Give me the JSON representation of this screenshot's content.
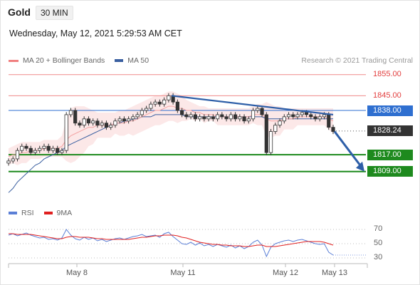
{
  "header": {
    "symbol": "Gold",
    "timeframe": "30 MIN",
    "datetime": "Wednesday, May 12, 2021 5:29:53 AM CET"
  },
  "legend": {
    "bb_label": "MA 20 + Bollinger Bands",
    "ma50_label": "MA 50",
    "credit": "Research © 2021 Trading Central"
  },
  "rsi_legend": {
    "rsi_label": "RSI",
    "ma9_label": "9MA"
  },
  "colors": {
    "bb": "#f08080",
    "ma50": "#3a5fa0",
    "rsi": "#5b7fd6",
    "ma9": "#e02020",
    "resistance": "#f08a8a",
    "support": "#1e8a1e",
    "pivot": "#2f6fd0",
    "arrow": "#2e5fa8"
  },
  "chart_data": [
    {
      "type": "line",
      "title": "Gold",
      "x_ticks": [
        "May 8",
        "May 11",
        "May 12",
        "May 13"
      ],
      "ylim": [
        1793,
        1860
      ],
      "levels": [
        {
          "label": "1855.00",
          "value": 1855.0,
          "kind": "resistance"
        },
        {
          "label": "1845.00",
          "value": 1845.0,
          "kind": "resistance"
        },
        {
          "label": "1838.00",
          "value": 1838.0,
          "kind": "pivot"
        },
        {
          "label": "1828.24",
          "value": 1828.24,
          "kind": "last"
        },
        {
          "label": "1817.00",
          "value": 1817.0,
          "kind": "support"
        },
        {
          "label": "1809.00",
          "value": 1809.0,
          "kind": "support"
        }
      ],
      "series": [
        {
          "name": "Gold",
          "values": [
            1814,
            1815,
            1819,
            1821,
            1820,
            1818,
            1819,
            1820,
            1821,
            1819,
            1820,
            1818,
            1819,
            1836,
            1838,
            1832,
            1831,
            1834,
            1832,
            1833,
            1831,
            1832,
            1830,
            1831,
            1833,
            1834,
            1833,
            1834,
            1835,
            1836,
            1838,
            1839,
            1841,
            1842,
            1841,
            1843,
            1845,
            1842,
            1838,
            1836,
            1835,
            1836,
            1834,
            1835,
            1834,
            1835,
            1834,
            1836,
            1835,
            1834,
            1836,
            1834,
            1835,
            1833,
            1834,
            1838,
            1839,
            1836,
            1818,
            1828,
            1831,
            1833,
            1835,
            1836,
            1835,
            1836,
            1837,
            1836,
            1835,
            1834,
            1835,
            1836,
            1830,
            1828
          ]
        },
        {
          "name": "MA 50",
          "values": [
            1799,
            1801,
            1804,
            1806,
            1808,
            1810,
            1812,
            1813,
            1815,
            1816,
            1817,
            1818,
            1819,
            1821,
            1822,
            1823,
            1824,
            1825,
            1826,
            1827,
            1828,
            1829,
            1830,
            1831,
            1832,
            1832,
            1833,
            1833,
            1834,
            1834,
            1835,
            1835,
            1835,
            1836,
            1836,
            1836,
            1836,
            1836,
            1836,
            1836,
            1835,
            1835,
            1835,
            1835,
            1835,
            1835,
            1835,
            1835,
            1835,
            1835,
            1835,
            1835,
            1835,
            1835,
            1835,
            1835,
            1835,
            1835,
            1834,
            1834,
            1834,
            1834,
            1834,
            1834,
            1834,
            1834,
            1834,
            1834,
            1834,
            1834,
            1834,
            1834,
            1834,
            1834
          ]
        },
        {
          "name": "MA 20",
          "values": [
            1816,
            1817,
            1817,
            1818,
            1818,
            1819,
            1819,
            1819,
            1820,
            1820,
            1820,
            1820,
            1821,
            1824,
            1826,
            1827,
            1828,
            1829,
            1830,
            1830,
            1831,
            1831,
            1831,
            1831,
            1832,
            1832,
            1832,
            1833,
            1833,
            1834,
            1835,
            1836,
            1837,
            1838,
            1838,
            1839,
            1840,
            1840,
            1839,
            1839,
            1838,
            1838,
            1837,
            1837,
            1836,
            1836,
            1836,
            1835,
            1835,
            1835,
            1835,
            1835,
            1835,
            1835,
            1835,
            1836,
            1836,
            1836,
            1834,
            1833,
            1833,
            1833,
            1834,
            1834,
            1834,
            1835,
            1835,
            1835,
            1835,
            1835,
            1835,
            1835,
            1834,
            1833
          ]
        }
      ],
      "bollinger_band": {
        "upper": [
          1820,
          1821,
          1822,
          1823,
          1823,
          1823,
          1823,
          1823,
          1824,
          1824,
          1824,
          1824,
          1826,
          1834,
          1839,
          1840,
          1840,
          1840,
          1839,
          1838,
          1837,
          1837,
          1837,
          1837,
          1837,
          1838,
          1838,
          1839,
          1840,
          1841,
          1842,
          1843,
          1844,
          1845,
          1845,
          1846,
          1847,
          1847,
          1846,
          1845,
          1843,
          1842,
          1841,
          1840,
          1840,
          1839,
          1839,
          1839,
          1839,
          1839,
          1839,
          1839,
          1839,
          1839,
          1839,
          1840,
          1841,
          1841,
          1842,
          1841,
          1840,
          1840,
          1839,
          1839,
          1839,
          1839,
          1839,
          1839,
          1839,
          1839,
          1839,
          1839,
          1839,
          1839
        ],
        "lower": [
          1812,
          1813,
          1812,
          1813,
          1813,
          1815,
          1815,
          1815,
          1816,
          1816,
          1816,
          1816,
          1816,
          1814,
          1813,
          1814,
          1816,
          1818,
          1821,
          1822,
          1825,
          1825,
          1825,
          1825,
          1827,
          1826,
          1826,
          1827,
          1826,
          1827,
          1828,
          1829,
          1830,
          1831,
          1831,
          1832,
          1833,
          1833,
          1832,
          1833,
          1833,
          1834,
          1833,
          1834,
          1832,
          1833,
          1833,
          1831,
          1831,
          1831,
          1831,
          1831,
          1831,
          1831,
          1831,
          1832,
          1831,
          1831,
          1826,
          1825,
          1826,
          1826,
          1829,
          1829,
          1829,
          1831,
          1831,
          1831,
          1831,
          1831,
          1831,
          1831,
          1829,
          1827
        ]
      },
      "trendline": {
        "from": 1845,
        "to": 1836
      },
      "forecast_arrow": {
        "from": 1828,
        "to": 1809
      }
    },
    {
      "type": "line",
      "ylim": [
        20,
        80
      ],
      "y_ticks": [
        70,
        50,
        30
      ],
      "series": [
        {
          "name": "RSI",
          "values": [
            62,
            64,
            61,
            63,
            65,
            62,
            60,
            58,
            59,
            56,
            57,
            55,
            58,
            70,
            62,
            57,
            55,
            59,
            56,
            58,
            54,
            56,
            53,
            55,
            57,
            58,
            56,
            58,
            60,
            61,
            63,
            60,
            61,
            62,
            59,
            64,
            66,
            60,
            55,
            50,
            49,
            52,
            48,
            51,
            47,
            49,
            46,
            49,
            47,
            45,
            48,
            44,
            47,
            43,
            46,
            52,
            55,
            48,
            32,
            45,
            50,
            52,
            54,
            55,
            53,
            55,
            56,
            54,
            52,
            50,
            49,
            50,
            38,
            34
          ]
        },
        {
          "name": "9MA",
          "values": [
            64,
            64,
            63,
            63,
            63,
            63,
            62,
            61,
            60,
            59,
            58,
            57,
            57,
            59,
            60,
            60,
            59,
            59,
            59,
            58,
            57,
            57,
            56,
            56,
            56,
            56,
            56,
            56,
            57,
            58,
            59,
            59,
            60,
            61,
            61,
            62,
            62,
            62,
            61,
            59,
            58,
            56,
            54,
            52,
            51,
            50,
            49,
            49,
            48,
            48,
            47,
            47,
            47,
            46,
            46,
            47,
            48,
            48,
            46,
            46,
            46,
            47,
            48,
            49,
            50,
            51,
            52,
            53,
            53,
            53,
            53,
            52,
            50,
            48
          ]
        }
      ]
    }
  ]
}
